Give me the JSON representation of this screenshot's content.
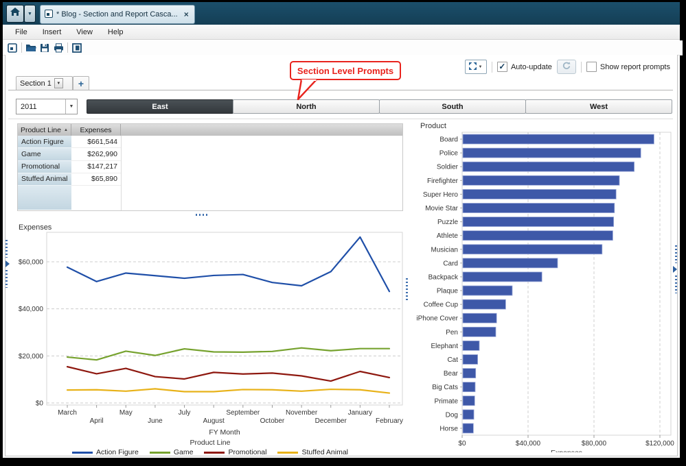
{
  "window": {
    "tab_title": "* Blog - Section and Report Casca...",
    "menu": [
      "File",
      "Insert",
      "View",
      "Help"
    ],
    "toolbar_icons": [
      "report-icon",
      "open-folder-icon",
      "save-icon",
      "print-icon",
      "panel-layout-icon"
    ],
    "controls": {
      "auto_update": {
        "label": "Auto-update",
        "checked": true
      },
      "show_report_prompts": {
        "label": "Show report prompts",
        "checked": false
      }
    }
  },
  "callout": {
    "text": "Section Level Prompts",
    "color": "#e8231d"
  },
  "section_tabs": {
    "active_label": "Section 1",
    "add_label": "+"
  },
  "prompts": {
    "year_value": "2011",
    "regions": [
      "East",
      "North",
      "South",
      "West"
    ],
    "selected_region": "East"
  },
  "table": {
    "columns": [
      "Product Line",
      "Expenses"
    ],
    "sort": {
      "column": "Product Line",
      "direction": "ascending"
    },
    "rows": [
      {
        "product_line": "Action Figure",
        "expenses": "$661,544"
      },
      {
        "product_line": "Game",
        "expenses": "$262,990"
      },
      {
        "product_line": "Promotional",
        "expenses": "$147,217"
      },
      {
        "product_line": "Stuffed Animal",
        "expenses": "$65,890"
      }
    ]
  },
  "chart_data": [
    {
      "type": "bar",
      "orientation": "horizontal",
      "title": "Product",
      "xlabel": "Expenses",
      "categories": [
        "Board",
        "Police",
        "Soldier",
        "Firefighter",
        "Super Hero",
        "Movie Star",
        "Puzzle",
        "Athlete",
        "Musician",
        "Card",
        "Backpack",
        "Plaque",
        "Coffee Cup",
        "iPhone Cover",
        "Pen",
        "Elephant",
        "Cat",
        "Bear",
        "Big Cats",
        "Primate",
        "Dog",
        "Horse"
      ],
      "values": [
        116000,
        108000,
        104000,
        95000,
        93000,
        92000,
        91500,
        91000,
        84500,
        57500,
        48000,
        30000,
        26000,
        20500,
        20000,
        10000,
        9000,
        7800,
        7500,
        7200,
        6700,
        6400
      ],
      "xlim": [
        0,
        126667
      ],
      "xticks": [
        0,
        40000,
        80000,
        120000
      ],
      "grid": "dashed",
      "bar_color": "#3E58A8"
    },
    {
      "type": "line",
      "title": "Expenses",
      "xlabel": "FY Month",
      "legend_title": "Product Line",
      "legend_position": "bottom",
      "categories": [
        "March",
        "April",
        "May",
        "June",
        "July",
        "August",
        "September",
        "October",
        "November",
        "December",
        "January",
        "February"
      ],
      "ylim": [
        0,
        72000
      ],
      "yticks": [
        0,
        20000,
        40000,
        60000
      ],
      "grid": "dashed",
      "series": [
        {
          "name": "Action Figure",
          "color": "#1F4FA8",
          "values": [
            57700,
            51600,
            55200,
            54100,
            53000,
            54200,
            54600,
            51200,
            49800,
            55800,
            70500,
            47400
          ]
        },
        {
          "name": "Game",
          "color": "#76A22E",
          "values": [
            19500,
            18300,
            22000,
            20200,
            23000,
            21700,
            21600,
            21900,
            23400,
            22200,
            23100,
            23100
          ]
        },
        {
          "name": "Promotional",
          "color": "#8E180F",
          "values": [
            15400,
            12400,
            14700,
            11200,
            10200,
            13000,
            12300,
            12700,
            11500,
            9300,
            13400,
            10800
          ]
        },
        {
          "name": "Stuffed Animal",
          "color": "#E8B219",
          "values": [
            5500,
            5600,
            5000,
            6000,
            4800,
            4800,
            5700,
            5600,
            5000,
            5800,
            5600,
            4200
          ]
        }
      ]
    }
  ]
}
